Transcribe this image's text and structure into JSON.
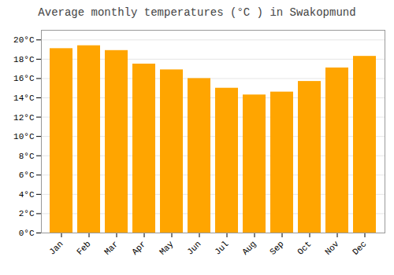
{
  "chart_data": {
    "type": "bar",
    "title": "Average monthly temperatures (°C ) in Swakopmund",
    "categories": [
      "Jan",
      "Feb",
      "Mar",
      "Apr",
      "May",
      "Jun",
      "Jul",
      "Aug",
      "Sep",
      "Oct",
      "Nov",
      "Dec"
    ],
    "values": [
      19.1,
      19.4,
      18.9,
      17.5,
      16.9,
      16.0,
      15.0,
      14.3,
      14.6,
      15.7,
      17.1,
      18.3
    ],
    "color": "#FFA500",
    "ylim": [
      0,
      21
    ],
    "yticks": [
      {
        "value": 0,
        "label": "0°C"
      },
      {
        "value": 2,
        "label": "2°C"
      },
      {
        "value": 4,
        "label": "4°C"
      },
      {
        "value": 6,
        "label": "6°C"
      },
      {
        "value": 8,
        "label": "8°C"
      },
      {
        "value": 10,
        "label": "10°C"
      },
      {
        "value": 12,
        "label": "12°C"
      },
      {
        "value": 14,
        "label": "14°C"
      },
      {
        "value": 16,
        "label": "16°C"
      },
      {
        "value": 18,
        "label": "18°C"
      },
      {
        "value": 20,
        "label": "20°C"
      }
    ],
    "grid": true
  }
}
